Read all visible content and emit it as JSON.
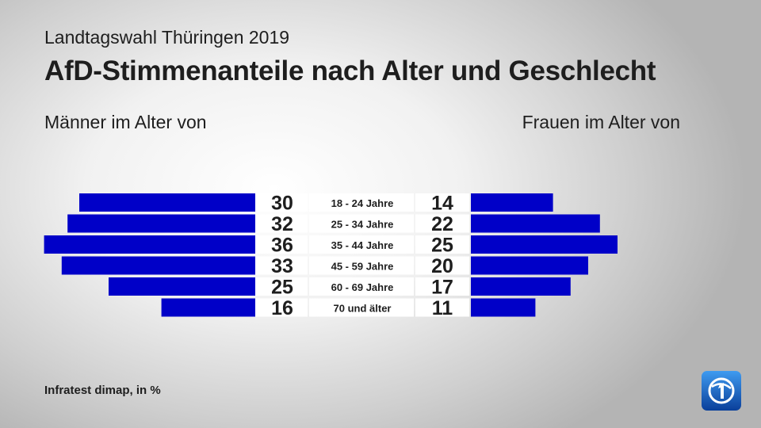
{
  "header": {
    "subtitle": "Landtagswahl Thüringen 2019",
    "title": "AfD-Stimmenanteile nach Alter und Geschlecht"
  },
  "columns": {
    "left": "Männer im Alter von",
    "right": "Frauen im Alter von"
  },
  "footer": {
    "source": "Infratest dimap, in %"
  },
  "logo": {
    "icon": "ard-das-erste-logo-icon"
  },
  "colors": {
    "bar": "#0000c8",
    "label_box": "#ffffff",
    "text": "#1e1e1e"
  },
  "chart_data": {
    "type": "bar",
    "orientation": "horizontal",
    "layout": "butterfly",
    "categories": [
      "18 - 24 Jahre",
      "25 - 34 Jahre",
      "35 - 44 Jahre",
      "45 - 59 Jahre",
      "60 - 69 Jahre",
      "70 und älter"
    ],
    "series": [
      {
        "name": "Männer im Alter von",
        "side": "left",
        "values": [
          30,
          32,
          36,
          33,
          25,
          16
        ]
      },
      {
        "name": "Frauen im Alter von",
        "side": "right",
        "values": [
          14,
          22,
          25,
          20,
          17,
          11
        ]
      }
    ],
    "unit": "%",
    "grid": false,
    "legend": "none"
  }
}
